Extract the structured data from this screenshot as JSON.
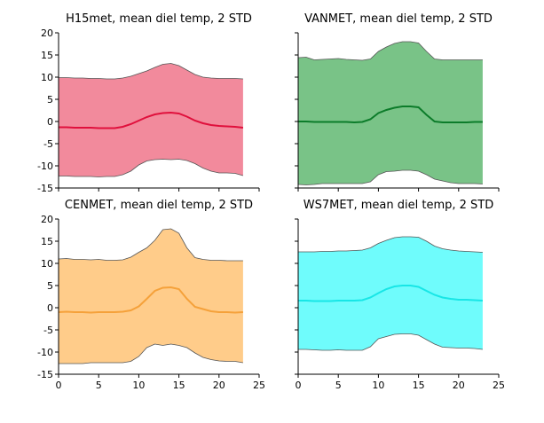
{
  "chart_data": [
    {
      "type": "area",
      "title": "H15met, mean diel temp, 2 STD",
      "xlim": [
        0,
        25
      ],
      "ylim": [
        -15,
        20
      ],
      "xticks": [
        0,
        5,
        10,
        15,
        20,
        25
      ],
      "yticks": [
        -15,
        -10,
        -5,
        0,
        5,
        10,
        15,
        20
      ],
      "show_x_tick_labels": false,
      "x": [
        0,
        1,
        2,
        3,
        4,
        5,
        6,
        7,
        8,
        9,
        10,
        11,
        12,
        13,
        14,
        15,
        16,
        17,
        18,
        19,
        20,
        21,
        22,
        23
      ],
      "mean": [
        -1.3,
        -1.3,
        -1.4,
        -1.4,
        -1.4,
        -1.5,
        -1.5,
        -1.5,
        -1.2,
        -0.6,
        0.2,
        1.0,
        1.6,
        1.9,
        2.0,
        1.8,
        1.1,
        0.2,
        -0.4,
        -0.8,
        -1.0,
        -1.1,
        -1.2,
        -1.4
      ],
      "upper": [
        9.9,
        9.9,
        9.8,
        9.8,
        9.7,
        9.7,
        9.6,
        9.6,
        9.8,
        10.2,
        10.8,
        11.4,
        12.2,
        12.9,
        13.1,
        12.6,
        11.6,
        10.6,
        10.0,
        9.8,
        9.7,
        9.7,
        9.7,
        9.6
      ],
      "lower": [
        -12.3,
        -12.3,
        -12.4,
        -12.4,
        -12.4,
        -12.5,
        -12.4,
        -12.4,
        -12.0,
        -11.2,
        -9.8,
        -8.9,
        -8.6,
        -8.5,
        -8.6,
        -8.5,
        -8.8,
        -9.5,
        -10.5,
        -11.2,
        -11.6,
        -11.6,
        -11.7,
        -12.2
      ],
      "fill_color": "#f28a9c",
      "mean_color": "#e0103c"
    },
    {
      "type": "area",
      "title": "VANMET, mean diel temp, 2 STD",
      "xlim": [
        0,
        25
      ],
      "ylim": [
        -15,
        20
      ],
      "xticks": [
        0,
        5,
        10,
        15,
        20,
        25
      ],
      "yticks": [
        -15,
        -10,
        -5,
        0,
        5,
        10,
        15,
        20
      ],
      "show_x_tick_labels": false,
      "show_y_tick_labels": false,
      "x": [
        0,
        1,
        2,
        3,
        4,
        5,
        6,
        7,
        8,
        9,
        10,
        11,
        12,
        13,
        14,
        15,
        16,
        17,
        18,
        19,
        20,
        21,
        22,
        23
      ],
      "mean": [
        0.0,
        0.0,
        -0.1,
        -0.1,
        -0.1,
        -0.1,
        -0.1,
        -0.2,
        -0.1,
        0.5,
        1.9,
        2.6,
        3.1,
        3.4,
        3.4,
        3.2,
        1.5,
        0.0,
        -0.2,
        -0.2,
        -0.2,
        -0.2,
        -0.1,
        -0.1
      ],
      "upper": [
        14.4,
        14.5,
        13.9,
        14.0,
        14.1,
        14.2,
        14.0,
        13.9,
        13.8,
        14.1,
        15.8,
        16.8,
        17.6,
        18.0,
        18.0,
        17.7,
        15.8,
        14.1,
        13.9,
        13.9,
        13.9,
        13.9,
        13.9,
        13.9
      ],
      "lower": [
        -14.2,
        -14.3,
        -14.2,
        -14.0,
        -14.0,
        -14.0,
        -14.0,
        -14.0,
        -14.0,
        -13.6,
        -12.0,
        -11.3,
        -11.2,
        -11.0,
        -11.0,
        -11.2,
        -12.0,
        -13.0,
        -13.4,
        -13.8,
        -14.0,
        -14.0,
        -14.0,
        -14.1
      ],
      "fill_color": "#79c387",
      "mean_color": "#0c7c2a"
    },
    {
      "type": "area",
      "title": "CENMET, mean diel temp, 2 STD",
      "xlim": [
        0,
        25
      ],
      "ylim": [
        -15,
        20
      ],
      "xticks": [
        0,
        5,
        10,
        15,
        20,
        25
      ],
      "yticks": [
        -15,
        -10,
        -5,
        0,
        5,
        10,
        15,
        20
      ],
      "x": [
        0,
        1,
        2,
        3,
        4,
        5,
        6,
        7,
        8,
        9,
        10,
        11,
        12,
        13,
        14,
        15,
        16,
        17,
        18,
        19,
        20,
        21,
        22,
        23
      ],
      "mean": [
        -1.0,
        -0.9,
        -1.0,
        -1.0,
        -1.1,
        -1.0,
        -1.0,
        -1.0,
        -0.9,
        -0.6,
        0.3,
        2.0,
        3.8,
        4.5,
        4.6,
        4.2,
        2.0,
        0.2,
        -0.3,
        -0.8,
        -1.0,
        -1.0,
        -1.1,
        -1.0
      ],
      "upper": [
        11.0,
        11.1,
        10.9,
        10.9,
        10.8,
        10.9,
        10.7,
        10.7,
        10.8,
        11.4,
        12.5,
        13.5,
        15.2,
        17.6,
        17.8,
        16.8,
        13.5,
        11.3,
        10.9,
        10.7,
        10.7,
        10.6,
        10.6,
        10.6
      ],
      "lower": [
        -12.6,
        -12.6,
        -12.6,
        -12.6,
        -12.4,
        -12.4,
        -12.4,
        -12.4,
        -12.4,
        -12.1,
        -11.0,
        -9.0,
        -8.2,
        -8.5,
        -8.2,
        -8.5,
        -9.0,
        -10.2,
        -11.2,
        -11.7,
        -12.0,
        -12.1,
        -12.1,
        -12.4
      ],
      "fill_color": "#ffcc8a",
      "mean_color": "#f5a13a"
    },
    {
      "type": "area",
      "title": "WS7MET, mean diel temp, 2 STD",
      "xlim": [
        0,
        25
      ],
      "ylim": [
        -15,
        20
      ],
      "xticks": [
        0,
        5,
        10,
        15,
        20,
        25
      ],
      "yticks": [
        -15,
        -10,
        -5,
        0,
        5,
        10,
        15,
        20
      ],
      "show_y_tick_labels": false,
      "x": [
        0,
        1,
        2,
        3,
        4,
        5,
        6,
        7,
        8,
        9,
        10,
        11,
        12,
        13,
        14,
        15,
        16,
        17,
        18,
        19,
        20,
        21,
        22,
        23
      ],
      "mean": [
        1.6,
        1.6,
        1.5,
        1.5,
        1.5,
        1.6,
        1.6,
        1.6,
        1.7,
        2.3,
        3.3,
        4.2,
        4.8,
        5.0,
        5.0,
        4.7,
        3.8,
        2.9,
        2.3,
        2.0,
        1.8,
        1.8,
        1.7,
        1.6
      ],
      "upper": [
        12.6,
        12.6,
        12.6,
        12.7,
        12.7,
        12.8,
        12.8,
        12.9,
        13.0,
        13.5,
        14.5,
        15.2,
        15.8,
        16.0,
        16.0,
        15.9,
        15.0,
        13.9,
        13.3,
        13.0,
        12.8,
        12.7,
        12.6,
        12.5
      ],
      "lower": [
        -9.4,
        -9.4,
        -9.5,
        -9.6,
        -9.6,
        -9.5,
        -9.6,
        -9.6,
        -9.6,
        -8.8,
        -7.0,
        -6.5,
        -6.0,
        -5.9,
        -5.9,
        -6.2,
        -7.2,
        -8.2,
        -8.9,
        -9.0,
        -9.1,
        -9.1,
        -9.2,
        -9.4
      ],
      "fill_color": "#6ffcfc",
      "mean_color": "#17e6e6"
    }
  ]
}
